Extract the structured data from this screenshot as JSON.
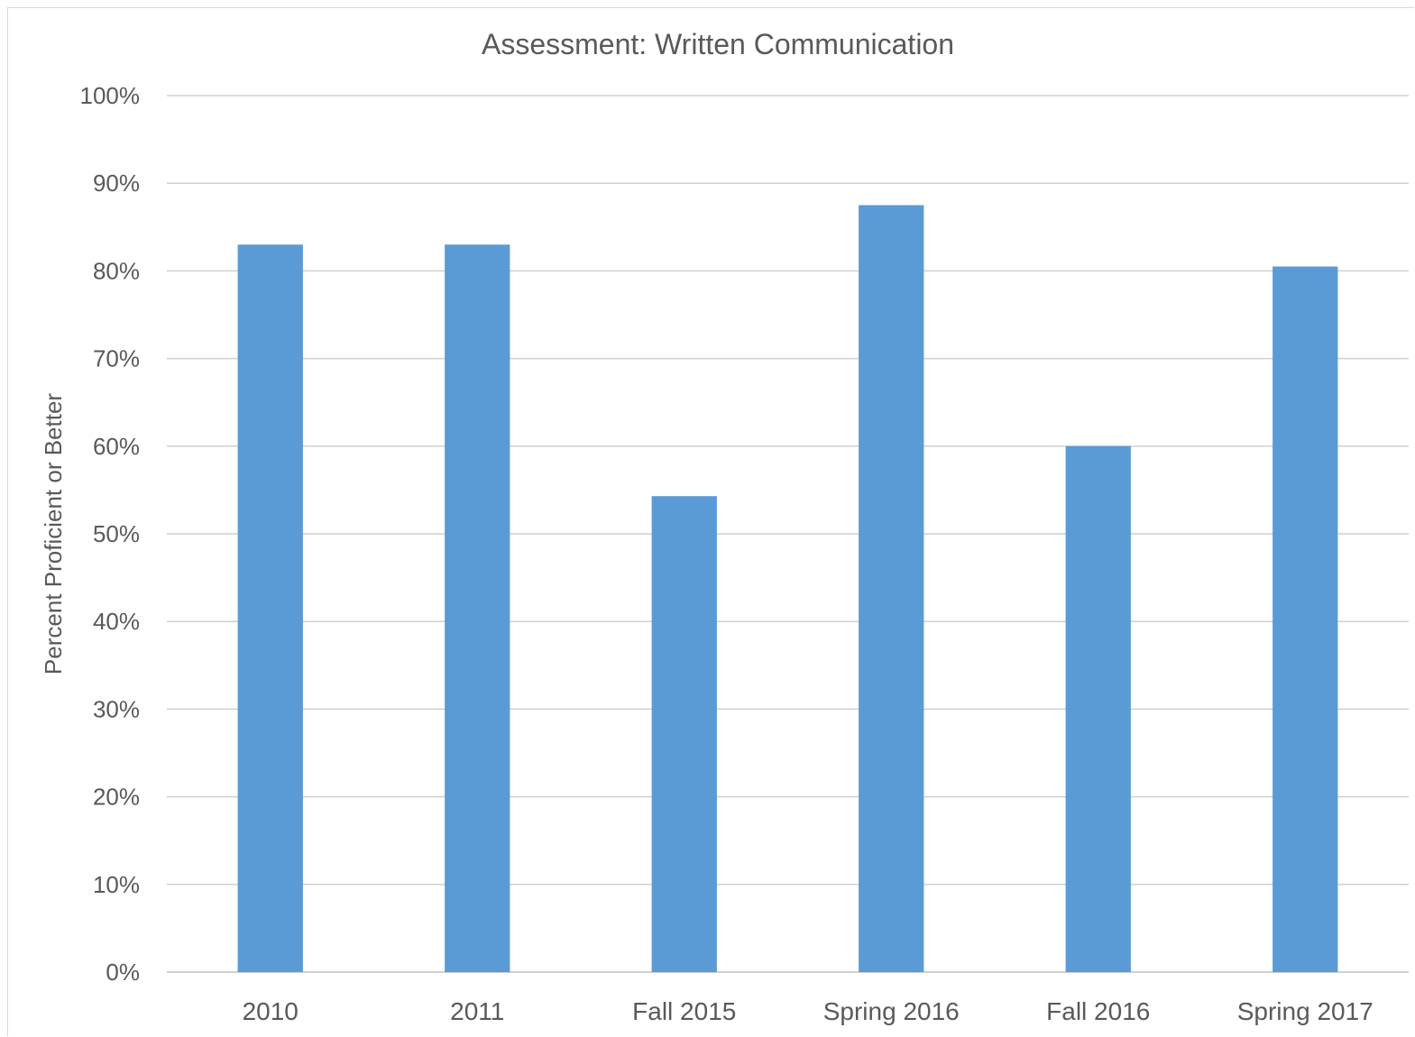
{
  "chart_data": {
    "type": "bar",
    "title": "Assessment: Written Communication",
    "xlabel": "",
    "ylabel": "Percent Proficient or Better",
    "categories": [
      "2010",
      "2011",
      "Fall 2015",
      "Spring 2016",
      "Fall 2016",
      "Spring 2017"
    ],
    "values": [
      0.83,
      0.83,
      0.543,
      0.875,
      0.6,
      0.805
    ],
    "ylim": [
      0,
      1
    ],
    "yticks": [
      0,
      0.1,
      0.2,
      0.3,
      0.4,
      0.5,
      0.6,
      0.7,
      0.8,
      0.9,
      1.0
    ],
    "ytick_labels": [
      "0%",
      "10%",
      "20%",
      "30%",
      "40%",
      "50%",
      "60%",
      "70%",
      "80%",
      "90%",
      "100%"
    ],
    "grid": true,
    "legend": "none",
    "bar_color": "#5b9bd5"
  }
}
